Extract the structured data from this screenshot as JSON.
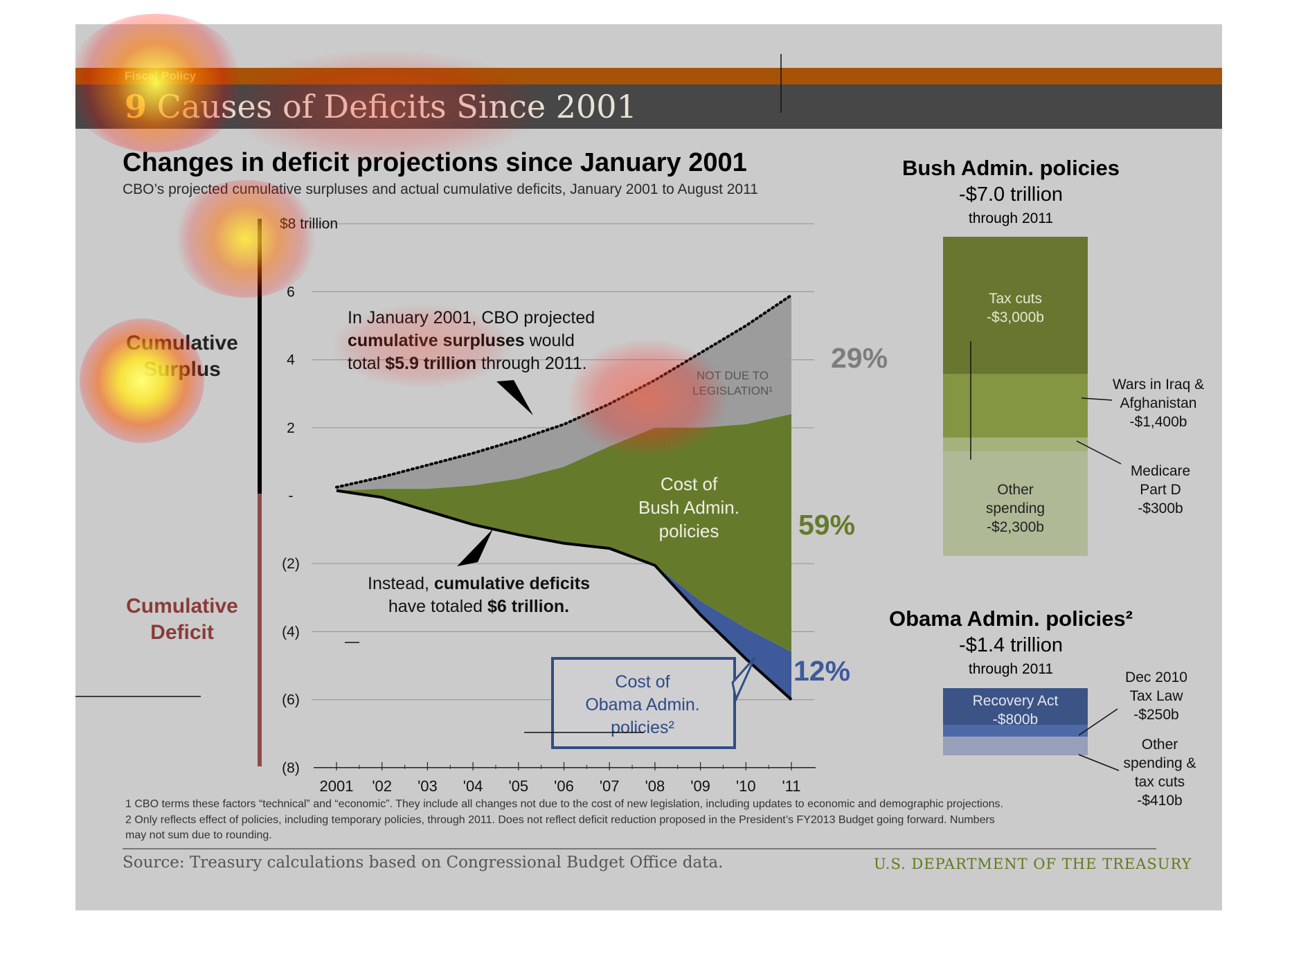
{
  "header": {
    "section_label": "Fiscal Policy",
    "title_number": "9",
    "title_text": "Causes of Deficits Since 2001"
  },
  "chart_data": [
    {
      "type": "area",
      "title": "Changes in deficit projections since January 2001",
      "subtitle": "CBO’s projected cumulative surpluses and actual cumulative deficits, January 2001 to August 2011",
      "x_ticks": [
        "2001",
        "'02",
        "'03",
        "'04",
        "'05",
        "'06",
        "'07",
        "'08",
        "'09",
        "'10",
        "'11"
      ],
      "y_ticks": [
        {
          "value": 8,
          "label": "$8 trillion"
        },
        {
          "value": 6,
          "label": "6"
        },
        {
          "value": 4,
          "label": "4"
        },
        {
          "value": 2,
          "label": "2"
        },
        {
          "value": 0,
          "label": "-"
        },
        {
          "value": -2,
          "label": "(2)"
        },
        {
          "value": -4,
          "label": "(4)"
        },
        {
          "value": -6,
          "label": "(6)"
        },
        {
          "value": -8,
          "label": "(8)"
        }
      ],
      "ylim": [
        -8,
        8
      ],
      "grid": true,
      "series": [
        {
          "key": "projected_surplus",
          "values": [
            0.25,
            0.55,
            0.9,
            1.25,
            1.65,
            2.1,
            2.7,
            3.4,
            4.2,
            5.0,
            5.9
          ]
        },
        {
          "key": "surplus_minus_legislation",
          "values": [
            0.15,
            0.2,
            0.2,
            0.3,
            0.5,
            0.85,
            1.45,
            2.0,
            2.0,
            2.1,
            2.4
          ]
        },
        {
          "key": "actual_cumulative_deficit",
          "values": [
            0.15,
            -0.05,
            -0.45,
            -0.85,
            -1.15,
            -1.4,
            -1.55,
            -2.05,
            -3.5,
            -4.8,
            -6.0
          ]
        },
        {
          "key": "bush_lower_bound",
          "values": [
            0.15,
            -0.05,
            -0.45,
            -0.85,
            -1.15,
            -1.4,
            -1.55,
            -2.05,
            -3.1,
            -3.9,
            -4.6
          ]
        }
      ],
      "shares": [
        {
          "key": "not_due_to_legislation",
          "label": "29%",
          "color": "#7d7d7d"
        },
        {
          "key": "bush",
          "label": "59%",
          "color": "#667a2c"
        },
        {
          "key": "obama",
          "label": "12%",
          "color": "#3e5a9b"
        }
      ],
      "region_labels": {
        "not_due": [
          "NOT DUE TO",
          "LEGISLATION¹"
        ],
        "bush": [
          "Cost of",
          "Bush Admin.",
          "policies"
        ],
        "obama_box": [
          "Cost of",
          "Obama Admin.",
          "policies²"
        ]
      },
      "colors": {
        "grey_area": "#9c9c9c",
        "bush_area": "#667a2c",
        "obama_area": "#3e5a9b"
      },
      "side_labels": {
        "surplus": [
          "Cumulative",
          "Surplus"
        ],
        "deficit": [
          "Cumulative",
          "Deficit"
        ]
      },
      "callouts": {
        "surplus_lines": [
          [
            {
              "t": "In January 2001, CBO projected",
              "b": false
            }
          ],
          [
            {
              "t": "cumulative surpluses",
              "b": true
            },
            {
              "t": " would",
              "b": false
            }
          ],
          [
            {
              "t": "total ",
              "b": false
            },
            {
              "t": "$5.9 trillion",
              "b": true
            },
            {
              "t": " through 2011.",
              "b": false
            }
          ]
        ],
        "deficit_lines": [
          [
            {
              "t": "Instead, ",
              "b": false
            },
            {
              "t": "cumulative deficits",
              "b": true
            }
          ],
          [
            {
              "t": "have totaled ",
              "b": false
            },
            {
              "t": "$6 trillion.",
              "b": true
            }
          ]
        ]
      }
    },
    {
      "type": "bar",
      "stacked": true,
      "title": "Bush Admin. policies",
      "total": "-$7.0 trillion",
      "period": "through 2011",
      "segments": [
        {
          "label": "Tax cuts",
          "value": -3000,
          "value_label": "-$3,000b",
          "color": "#68762f"
        },
        {
          "label": "Wars in Iraq  & Afghanistan",
          "value": -1400,
          "value_label": "-$1,400b",
          "color": "#849642"
        },
        {
          "label": "Medicare Part D",
          "value": -300,
          "value_label": "-$300b",
          "color": "#a6b27c"
        },
        {
          "label": "Other spending",
          "value": -2300,
          "value_label": "-$2,300b",
          "color": "#afb996"
        }
      ]
    },
    {
      "type": "bar",
      "stacked": true,
      "title": "Obama Admin. policies²",
      "total": "-$1.4 trillion",
      "period": "through 2011",
      "segments": [
        {
          "label": "Recovery Act",
          "value": -800,
          "value_label": "-$800b",
          "color": "#3c5385"
        },
        {
          "label": "Dec 2010 Tax Law",
          "value": -250,
          "value_label": "-$250b",
          "color": "#4d6aa6"
        },
        {
          "label": "Other spending & tax cuts",
          "value": -410,
          "value_label": "-$410b",
          "color": "#979fbb"
        }
      ]
    }
  ],
  "footnotes": [
    "1 CBO terms these factors “technical” and “economic”. They include all changes not due to the cost of new legislation, including updates to economic and demographic projections.",
    "2 Only reflects effect of policies, including temporary policies, through 2011. Does not reflect deficit reduction proposed in the President’s FY2013 Budget going forward. Numbers",
    "may not sum due to rounding."
  ],
  "source": "Source: Treasury calculations based on Congressional Budget Office data.",
  "agency": "U.S. DEPARTMENT OF THE TREASURY"
}
